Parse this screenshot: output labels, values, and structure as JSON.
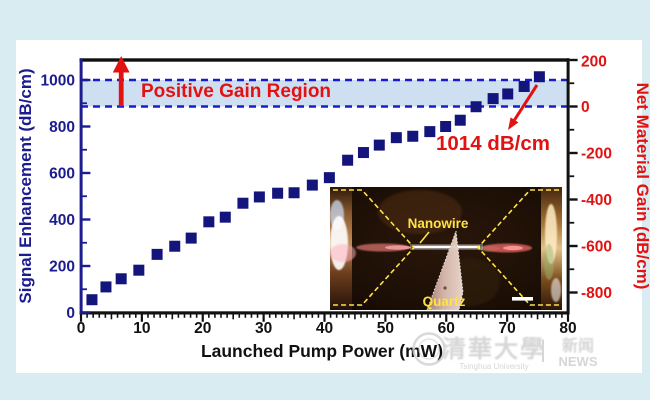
{
  "figure": {
    "frame_color": "#d9ecf2",
    "panel_color": "#ffffff"
  },
  "chart_data": {
    "type": "scatter",
    "title": "",
    "xlabel": "Launched Pump Power (mW)",
    "ylabel_left": "Signal Enhancement (dB/cm)",
    "ylabel_right": "Net Material Gain (dB/cm)",
    "xlim": [
      0,
      80
    ],
    "ylim_left": [
      0,
      1086
    ],
    "ylim_right": [
      -886,
      200
    ],
    "grid": false,
    "x_ticks": {
      "major": [
        0,
        10,
        20,
        30,
        40,
        50,
        60,
        70,
        80
      ],
      "medium_every": 5,
      "minor_every": 1
    },
    "y_ticks_left": {
      "major": [
        0,
        200,
        400,
        600,
        800,
        1000
      ],
      "minor": [
        100,
        300,
        500,
        700,
        900
      ]
    },
    "y_ticks_right": {
      "major": [
        200,
        0,
        -200,
        -400,
        -600,
        -800
      ],
      "minor": [
        100,
        -100,
        -300,
        -500,
        -700
      ]
    },
    "marker": {
      "shape": "square",
      "size": 11,
      "color": "#14147d"
    },
    "points": [
      [
        1.8,
        55
      ],
      [
        4.1,
        110
      ],
      [
        6.6,
        145
      ],
      [
        9.5,
        182
      ],
      [
        12.5,
        250
      ],
      [
        15.4,
        285
      ],
      [
        18.1,
        320
      ],
      [
        21.0,
        390
      ],
      [
        23.7,
        410
      ],
      [
        26.6,
        470
      ],
      [
        29.3,
        497
      ],
      [
        32.3,
        513
      ],
      [
        35.0,
        515
      ],
      [
        38.0,
        548
      ],
      [
        40.8,
        580
      ],
      [
        43.8,
        655
      ],
      [
        46.4,
        688
      ],
      [
        49.0,
        720
      ],
      [
        51.8,
        752
      ],
      [
        54.5,
        758
      ],
      [
        57.3,
        778
      ],
      [
        59.9,
        800
      ],
      [
        62.3,
        827
      ],
      [
        64.9,
        885
      ],
      [
        67.7,
        920
      ],
      [
        70.1,
        940
      ],
      [
        72.8,
        972
      ],
      [
        75.3,
        1014
      ]
    ],
    "band": {
      "from": 886,
      "to": 1000,
      "fill": "#cfdff2",
      "dash_color": "#1a1ad0"
    },
    "legend": null
  },
  "annotations": {
    "positive_gain_label": "Positive Gain Region",
    "gain_value_label": "1014 dB/cm",
    "accent_red": "#e31212"
  },
  "inset": {
    "nanowire_label": "Nanowire",
    "quartz_label": "Quartz",
    "outline_color": "#ffe345"
  },
  "watermark": {
    "cjk_name": "清華大學",
    "latin_name": "Tsinghua University",
    "divider": "|",
    "news_cjk": "新闻",
    "news_latin": "NEWS"
  },
  "colors": {
    "navy_marker": "#14147d",
    "navy_axis": "#1c1c8f",
    "red_accent": "#e31212",
    "dash_blue": "#1a1ad0",
    "band_fill": "#cfdff2",
    "frame_blue": "#d9ecf2",
    "spine_black": "#111111"
  }
}
